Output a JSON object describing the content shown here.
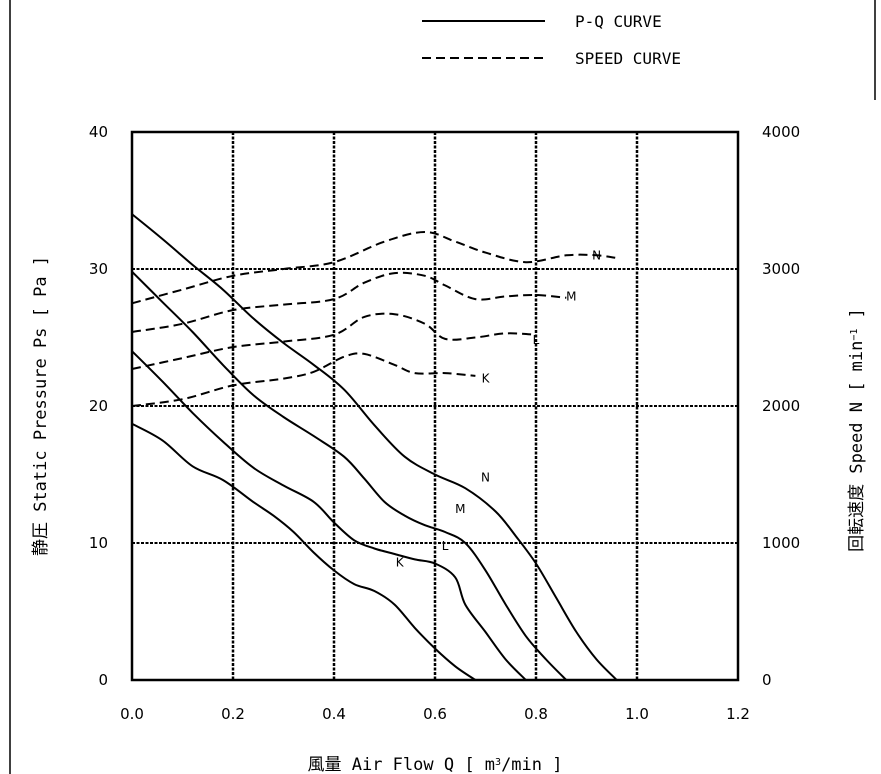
{
  "chart_data": {
    "type": "line",
    "title": "",
    "xlabel": "風量 Air Flow Q [ m³/min ]",
    "xlabel_parts": {
      "main": "風量 Air Flow Q [ m",
      "sup": "3",
      "tail": "/min ]"
    },
    "ylabel": "静圧 Static Pressure Ps [ Pa ]",
    "y2label": "回転速度 Speed N [ min⁻¹ ]",
    "y2label_parts": {
      "main": "回転速度 Speed N [ min",
      "sup": "−1",
      "tail": " ]"
    },
    "xlim": [
      0,
      1.2
    ],
    "ylim": [
      0,
      40
    ],
    "y2lim": [
      0,
      4000
    ],
    "xticks": [
      "0.0",
      "0.2",
      "0.4",
      "0.6",
      "0.8",
      "1.0",
      "1.2"
    ],
    "yticks": [
      "0",
      "10",
      "20",
      "30",
      "40"
    ],
    "y2ticks": [
      "0",
      "1000",
      "2000",
      "3000",
      "4000"
    ],
    "grid": true,
    "legend": {
      "placement": "top-right",
      "entries": [
        {
          "label": "P-Q CURVE",
          "style": "solid"
        },
        {
          "label": "SPEED CURVE",
          "style": "dashed"
        }
      ]
    },
    "pq_series": [
      {
        "name": "N",
        "label_at": [
          0.7,
          14.5
        ],
        "x": [
          0.0,
          0.06,
          0.12,
          0.18,
          0.24,
          0.3,
          0.36,
          0.42,
          0.48,
          0.54,
          0.6,
          0.66,
          0.72,
          0.76,
          0.8,
          0.84,
          0.88,
          0.92,
          0.96
        ],
        "y": [
          34.0,
          32.2,
          30.3,
          28.5,
          26.4,
          24.6,
          23.0,
          21.2,
          18.6,
          16.3,
          15.0,
          14.0,
          12.3,
          10.5,
          8.5,
          6.0,
          3.5,
          1.5,
          0.0
        ]
      },
      {
        "name": "M",
        "label_at": [
          0.65,
          12.2
        ],
        "x": [
          0.0,
          0.06,
          0.12,
          0.18,
          0.24,
          0.3,
          0.36,
          0.42,
          0.46,
          0.5,
          0.54,
          0.58,
          0.62,
          0.66,
          0.7,
          0.74,
          0.78,
          0.82,
          0.86
        ],
        "y": [
          29.8,
          27.6,
          25.4,
          23.0,
          20.8,
          19.2,
          17.8,
          16.3,
          14.7,
          13.0,
          12.0,
          11.3,
          10.8,
          10.0,
          8.0,
          5.5,
          3.2,
          1.5,
          0.0
        ]
      },
      {
        "name": "L",
        "label_at": [
          0.62,
          9.5
        ],
        "x": [
          0.0,
          0.06,
          0.12,
          0.18,
          0.24,
          0.3,
          0.36,
          0.4,
          0.44,
          0.48,
          0.52,
          0.56,
          0.6,
          0.64,
          0.66,
          0.7,
          0.74,
          0.78
        ],
        "y": [
          24.0,
          21.8,
          19.5,
          17.4,
          15.5,
          14.2,
          13.0,
          11.5,
          10.2,
          9.6,
          9.2,
          8.8,
          8.5,
          7.5,
          5.5,
          3.5,
          1.5,
          0.0
        ]
      },
      {
        "name": "K",
        "label_at": [
          0.53,
          8.3
        ],
        "x": [
          0.0,
          0.06,
          0.12,
          0.18,
          0.24,
          0.28,
          0.32,
          0.36,
          0.4,
          0.44,
          0.48,
          0.52,
          0.56,
          0.6,
          0.64,
          0.68
        ],
        "y": [
          18.7,
          17.5,
          15.6,
          14.6,
          13.0,
          12.0,
          10.8,
          9.3,
          8.0,
          7.0,
          6.5,
          5.5,
          3.8,
          2.3,
          1.0,
          0.0
        ]
      }
    ],
    "speed_series": [
      {
        "name": "N",
        "label_at": [
          0.92,
          3100
        ],
        "x": [
          0.0,
          0.1,
          0.2,
          0.3,
          0.4,
          0.5,
          0.58,
          0.64,
          0.7,
          0.78,
          0.86,
          0.92,
          0.96
        ],
        "y": [
          2750,
          2850,
          2950,
          3000,
          3050,
          3200,
          3270,
          3200,
          3120,
          3050,
          3100,
          3100,
          3080
        ]
      },
      {
        "name": "M",
        "label_at": [
          0.87,
          2800
        ],
        "x": [
          0.0,
          0.1,
          0.2,
          0.3,
          0.4,
          0.46,
          0.52,
          0.58,
          0.62,
          0.68,
          0.74,
          0.8,
          0.86
        ],
        "y": [
          2540,
          2600,
          2700,
          2740,
          2780,
          2900,
          2970,
          2950,
          2880,
          2780,
          2800,
          2810,
          2790
        ]
      },
      {
        "name": "L",
        "label_at": [
          0.8,
          2480
        ],
        "x": [
          0.0,
          0.1,
          0.2,
          0.3,
          0.4,
          0.46,
          0.52,
          0.58,
          0.62,
          0.68,
          0.74,
          0.8
        ],
        "y": [
          2270,
          2350,
          2430,
          2470,
          2520,
          2650,
          2670,
          2600,
          2490,
          2500,
          2530,
          2520
        ]
      },
      {
        "name": "K",
        "label_at": [
          0.7,
          2200
        ],
        "x": [
          0.0,
          0.1,
          0.2,
          0.3,
          0.36,
          0.42,
          0.46,
          0.52,
          0.56,
          0.62,
          0.68
        ],
        "y": [
          2000,
          2050,
          2150,
          2200,
          2250,
          2360,
          2380,
          2300,
          2240,
          2240,
          2220
        ]
      }
    ]
  }
}
